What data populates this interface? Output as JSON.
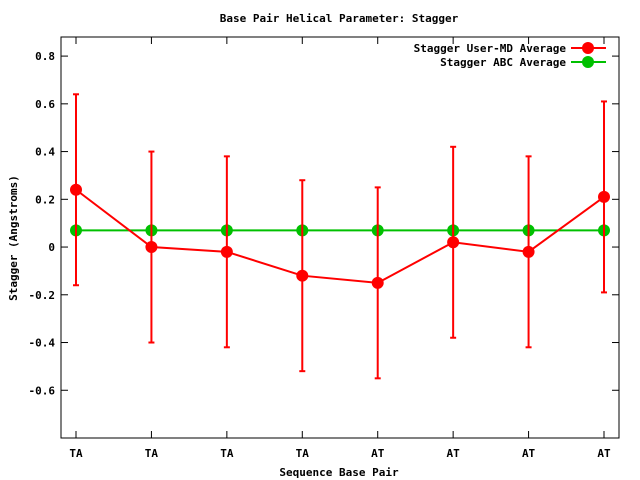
{
  "chart_data": {
    "type": "line",
    "title": "Base Pair Helical Parameter: Stagger",
    "xlabel": "Sequence Base Pair",
    "ylabel": "Stagger (Angstroms)",
    "categories": [
      "TA",
      "TA",
      "TA",
      "TA",
      "AT",
      "AT",
      "AT",
      "AT"
    ],
    "ylim": [
      -0.8,
      0.88
    ],
    "yticks": [
      -0.6,
      -0.4,
      -0.2,
      0,
      0.2,
      0.4,
      0.6,
      0.8
    ],
    "ytick_labels": [
      "-0.6",
      "-0.4",
      "-0.2",
      "0",
      "0.2",
      "0.4",
      "0.6",
      "0.8"
    ],
    "grid": false,
    "legend_position": "top-right",
    "series": [
      {
        "name": "Stagger User-MD Average",
        "color": "#ff0000",
        "values": [
          0.24,
          0.0,
          -0.02,
          -0.12,
          -0.15,
          0.02,
          -0.02,
          0.21
        ],
        "error_low": [
          -0.16,
          -0.4,
          -0.42,
          -0.52,
          -0.55,
          -0.38,
          -0.42,
          -0.19
        ],
        "error_high": [
          0.64,
          0.4,
          0.38,
          0.28,
          0.25,
          0.42,
          0.38,
          0.61
        ]
      },
      {
        "name": "Stagger ABC Average",
        "color": "#00c000",
        "values": [
          0.07,
          0.07,
          0.07,
          0.07,
          0.07,
          0.07,
          0.07,
          0.07
        ]
      }
    ]
  }
}
